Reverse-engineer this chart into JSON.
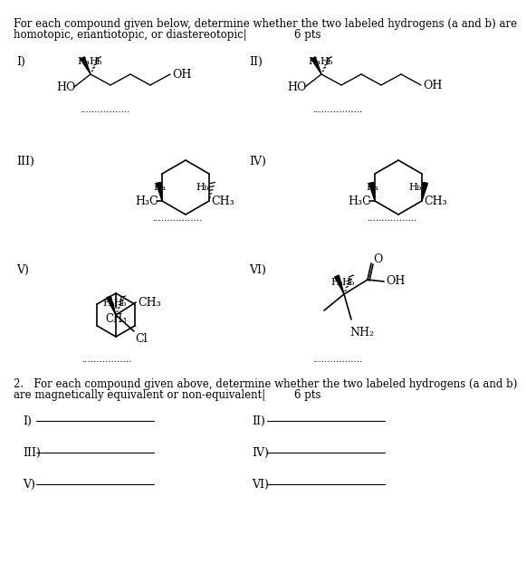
{
  "bg_color": "#ffffff",
  "text_color": "#000000",
  "title_line1": "For each compound given below, determine whether the two labeled hydrogens (a and b) are",
  "title_line2": "homotopic, enantiotopic, or diastereotopic|",
  "title_pts": "6 pts",
  "q2_line1": "2.   For each compound given above, determine whether the two labeled hydrogens (a and b)",
  "q2_line2": "are magnetically equivalent or non-equivalent|",
  "q2_pts": "6 pts"
}
